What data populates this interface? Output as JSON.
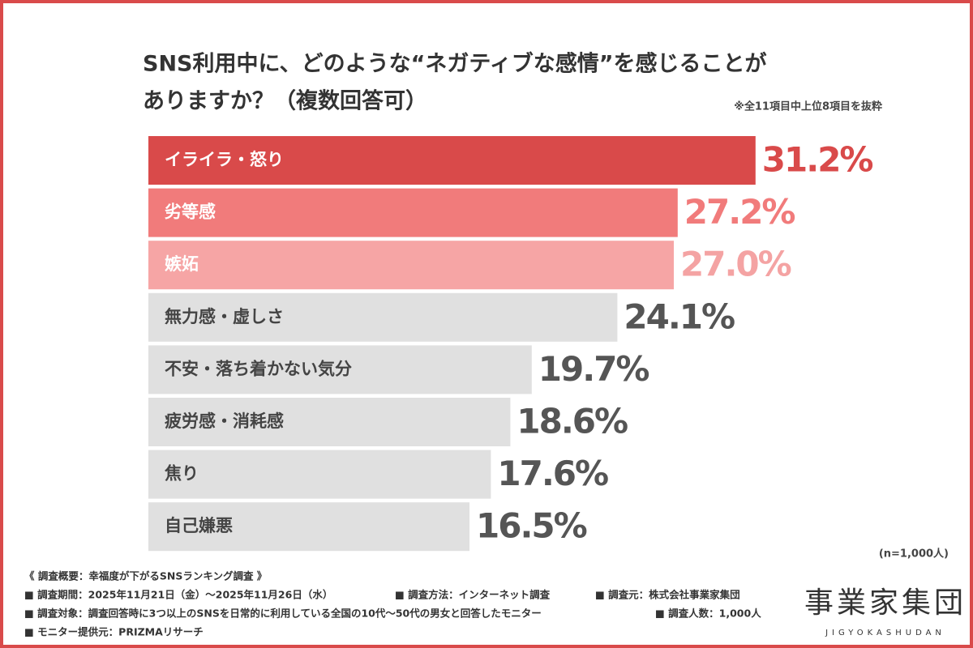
{
  "chart_data": {
    "type": "bar",
    "orientation": "horizontal",
    "title": [
      "SNS利用中に、どのような“ネガティブな感情”を感じることが",
      "ありますか？（複数回答可）"
    ],
    "note": "※全11項目中上位8項目を抜粋",
    "sample_size": "(n=1,000人)",
    "categories": [
      "イライラ・怒り",
      "劣等感",
      "嫉妬",
      "無力感・虚しさ",
      "不安・落ち着かない気分",
      "疲労感・消耗感",
      "焦り",
      "自己嫌悪"
    ],
    "values": [
      31.2,
      27.2,
      27.0,
      24.1,
      19.7,
      18.6,
      17.6,
      16.5
    ],
    "value_labels": [
      "31.2%",
      "27.2%",
      "27.0%",
      "24.1%",
      "19.7%",
      "18.6%",
      "17.6%",
      "16.5%"
    ],
    "colors": [
      "#d94a4a",
      "#f17b7b",
      "#f6a5a5",
      "#e0e0e0",
      "#e0e0e0",
      "#e0e0e0",
      "#e0e0e0",
      "#e0e0e0"
    ],
    "category_label_colors": [
      "#ffffff",
      "#ffffff",
      "#ffffff",
      "#444444",
      "#444444",
      "#444444",
      "#444444",
      "#444444"
    ],
    "value_label_colors": [
      "#d94a4a",
      "#f17b7b",
      "#f4a3a3",
      "#555555",
      "#555555",
      "#555555",
      "#555555",
      "#555555"
    ]
  },
  "footer": {
    "heading": "《 調査概要：幸福度が下がるSNSランキング調査 》",
    "items": [
      "■ 調査期間：2025年11月21日（金）〜2025年11月26日（水）",
      "■ 調査方法：インターネット調査",
      "■ 調査元：株式会社事業家集団",
      "■ 調査対象：調査回答時に3つ以上のSNSを日常的に利用している全国の10代〜50代の男女と回答したモニター",
      "■ 調査人数：1,000人",
      "■ モニター提供元：PRIZMAリサーチ"
    ]
  },
  "logo": {
    "name": "事業家集団",
    "romaji": "JIGYOKASHUDAN"
  }
}
